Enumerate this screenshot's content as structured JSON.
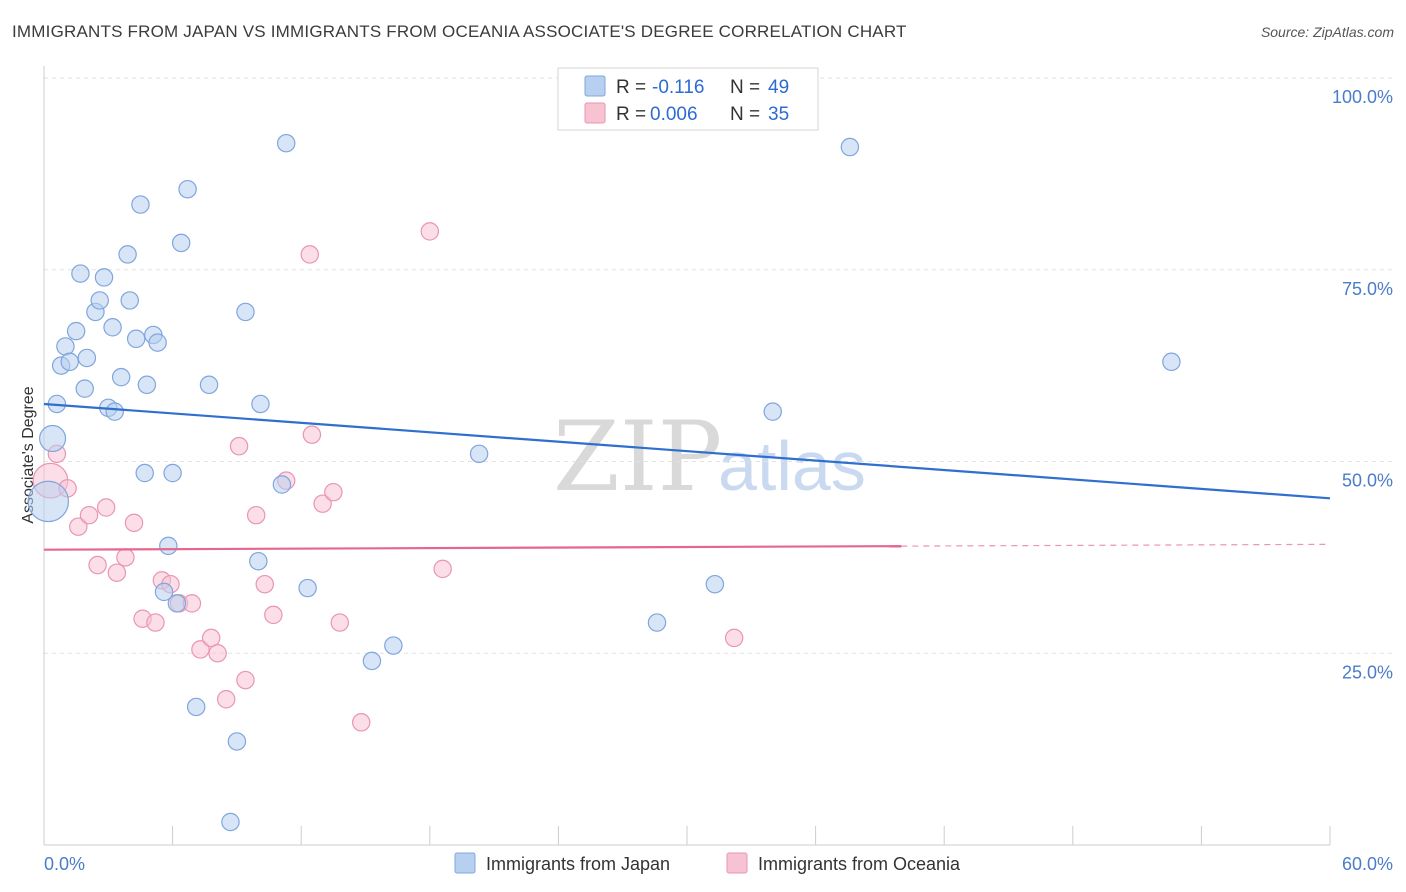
{
  "header": {
    "title": "IMMIGRANTS FROM JAPAN VS IMMIGRANTS FROM OCEANIA ASSOCIATE'S DEGREE CORRELATION CHART",
    "source": "Source: ZipAtlas.com"
  },
  "watermark": {
    "zip": "ZIP",
    "atlas": "atlas"
  },
  "legend": {
    "japan": {
      "r_label": "R =",
      "r_value": "-0.116",
      "n_label": "N =",
      "n_value": "49"
    },
    "oceania": {
      "r_label": "R =",
      "r_value": "0.006",
      "n_label": "N =",
      "n_value": "35"
    }
  },
  "colors": {
    "japan_fill": "#b8d0f0",
    "japan_stroke": "#7fa6dd",
    "japan_line": "#2f6fcf",
    "oceania_fill": "#f7c3d3",
    "oceania_stroke": "#e996b1",
    "oceania_line": "#e4678e"
  },
  "chart_data": {
    "type": "scatter",
    "title": "IMMIGRANTS FROM JAPAN VS IMMIGRANTS FROM OCEANIA ASSOCIATE'S DEGREE CORRELATION CHART",
    "xlabel": "",
    "ylabel": "Associate's Degree",
    "xlim": [
      0,
      60
    ],
    "ylim": [
      0,
      100
    ],
    "x_tick_labels": [
      "0.0%",
      "60.0%"
    ],
    "y_tick_labels": [
      "100.0%",
      "75.0%",
      "50.0%",
      "25.0%"
    ],
    "y_ticks": [
      100,
      75,
      50,
      25
    ],
    "grid": true,
    "legend_position": "top-center",
    "series": [
      {
        "name": "Immigrants from Japan",
        "r": -0.116,
        "n": 49,
        "trend": {
          "x": [
            0,
            60
          ],
          "y": [
            57.5,
            45.2
          ],
          "dashed_from": null
        },
        "points": [
          [
            0.2,
            44.8,
            28
          ],
          [
            0.4,
            53,
            18
          ],
          [
            0.6,
            57.5,
            12
          ],
          [
            0.8,
            62.5,
            12
          ],
          [
            1.0,
            65,
            12
          ],
          [
            1.2,
            63,
            12
          ],
          [
            1.5,
            67,
            12
          ],
          [
            1.7,
            74.5,
            12
          ],
          [
            1.9,
            59.5,
            12
          ],
          [
            2.0,
            63.5,
            12
          ],
          [
            2.4,
            69.5,
            12
          ],
          [
            2.6,
            71,
            12
          ],
          [
            2.8,
            74,
            12
          ],
          [
            3.0,
            57,
            12
          ],
          [
            3.3,
            56.5,
            12
          ],
          [
            3.2,
            67.5,
            12
          ],
          [
            3.6,
            61,
            12
          ],
          [
            3.9,
            77,
            12
          ],
          [
            4.0,
            71,
            12
          ],
          [
            4.3,
            66,
            12
          ],
          [
            4.5,
            83.5,
            12
          ],
          [
            4.7,
            48.5,
            12
          ],
          [
            4.8,
            60,
            12
          ],
          [
            5.1,
            66.5,
            12
          ],
          [
            5.3,
            65.5,
            12
          ],
          [
            5.6,
            33,
            12
          ],
          [
            5.8,
            39,
            12
          ],
          [
            6.0,
            48.5,
            12
          ],
          [
            6.2,
            31.5,
            12
          ],
          [
            6.4,
            78.5,
            12
          ],
          [
            6.7,
            85.5,
            12
          ],
          [
            7.1,
            18,
            12
          ],
          [
            7.7,
            60,
            12
          ],
          [
            8.7,
            3,
            12
          ],
          [
            9.0,
            13.5,
            12
          ],
          [
            9.4,
            69.5,
            12
          ],
          [
            10.0,
            37,
            12
          ],
          [
            10.1,
            57.5,
            12
          ],
          [
            11.1,
            47,
            12
          ],
          [
            11.3,
            91.5,
            12
          ],
          [
            12.3,
            33.5,
            12
          ],
          [
            15.3,
            24,
            12
          ],
          [
            16.3,
            26,
            12
          ],
          [
            20.3,
            51,
            12
          ],
          [
            28.6,
            29,
            12
          ],
          [
            31.3,
            34,
            12
          ],
          [
            34.0,
            56.5,
            12
          ],
          [
            37.6,
            91,
            12
          ],
          [
            52.6,
            63,
            12
          ]
        ]
      },
      {
        "name": "Immigrants from Oceania",
        "r": 0.006,
        "n": 35,
        "trend": {
          "x": [
            0,
            60
          ],
          "y": [
            38.5,
            39.2
          ],
          "dashed_from": 40
        },
        "points": [
          [
            0.3,
            47.5,
            24
          ],
          [
            0.6,
            51,
            12
          ],
          [
            1.1,
            46.5,
            12
          ],
          [
            1.6,
            41.5,
            12
          ],
          [
            2.1,
            43,
            12
          ],
          [
            2.5,
            36.5,
            12
          ],
          [
            2.9,
            44,
            12
          ],
          [
            3.4,
            35.5,
            12
          ],
          [
            3.8,
            37.5,
            12
          ],
          [
            4.2,
            42,
            12
          ],
          [
            4.6,
            29.5,
            12
          ],
          [
            5.2,
            29,
            12
          ],
          [
            5.5,
            34.5,
            12
          ],
          [
            5.9,
            34,
            12
          ],
          [
            6.3,
            31.5,
            12
          ],
          [
            6.9,
            31.5,
            12
          ],
          [
            7.3,
            25.5,
            12
          ],
          [
            7.8,
            27,
            12
          ],
          [
            8.1,
            25,
            12
          ],
          [
            8.5,
            19,
            12
          ],
          [
            9.1,
            52,
            12
          ],
          [
            9.4,
            21.5,
            12
          ],
          [
            9.9,
            43,
            12
          ],
          [
            10.3,
            34,
            12
          ],
          [
            10.7,
            30,
            12
          ],
          [
            11.3,
            47.5,
            12
          ],
          [
            12.4,
            77,
            12
          ],
          [
            12.5,
            53.5,
            12
          ],
          [
            13.0,
            44.5,
            12
          ],
          [
            13.5,
            46,
            12
          ],
          [
            13.8,
            29,
            12
          ],
          [
            14.8,
            16,
            12
          ],
          [
            18.0,
            80,
            12
          ],
          [
            18.6,
            36,
            12
          ],
          [
            32.2,
            27,
            12
          ]
        ]
      }
    ]
  },
  "bottom_legend": {
    "japan_label": "Immigrants from Japan",
    "oceania_label": "Immigrants from Oceania"
  }
}
